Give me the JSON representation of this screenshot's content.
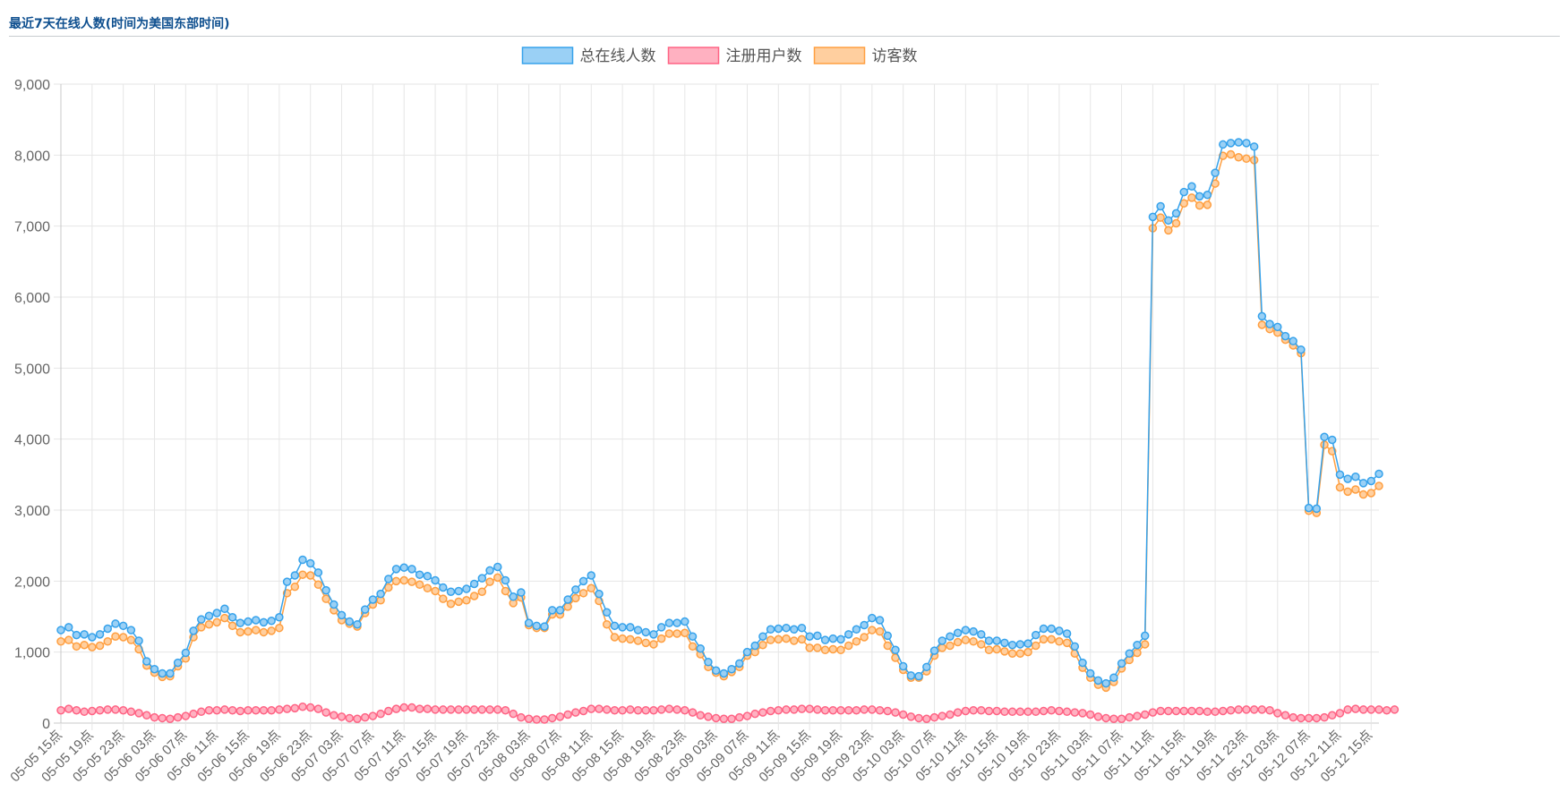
{
  "header": {
    "title": "最近7天在线人数(时间为美国东部时间)"
  },
  "chart_data": {
    "type": "line",
    "title": "",
    "xlabel": "",
    "ylabel": "",
    "ylim": [
      0,
      9000
    ],
    "y_ticks": [
      0,
      1000,
      2000,
      3000,
      4000,
      5000,
      6000,
      7000,
      8000,
      9000
    ],
    "y_tick_labels": [
      "0",
      "1,000",
      "2,000",
      "3,000",
      "4,000",
      "5,000",
      "6,000",
      "7,000",
      "8,000",
      "9,000"
    ],
    "x_tick_labels": [
      "05-05 15点",
      "05-05 19点",
      "05-05 23点",
      "05-06 03点",
      "05-06 07点",
      "05-06 11点",
      "05-06 15点",
      "05-06 19点",
      "05-06 23点",
      "05-07 03点",
      "05-07 07点",
      "05-07 11点",
      "05-07 15点",
      "05-07 19点",
      "05-07 23点",
      "05-08 03点",
      "05-08 07点",
      "05-08 11点",
      "05-08 15点",
      "05-08 19点",
      "05-08 23点",
      "05-09 03点",
      "05-09 07点",
      "05-09 11点",
      "05-09 15点",
      "05-09 19点",
      "05-09 23点",
      "05-10 03点",
      "05-10 07点",
      "05-10 11点",
      "05-10 15点",
      "05-10 19点",
      "05-10 23点",
      "05-11 03点",
      "05-11 07点",
      "05-11 11点",
      "05-11 15点",
      "05-11 19点",
      "05-11 23点",
      "05-12 03点",
      "05-12 07点",
      "05-12 11点",
      "05-12 15点"
    ],
    "points_per_tick": 4,
    "grid": true,
    "legend_position": "top-center",
    "series": [
      {
        "name": "总在线人数",
        "color": "#36a2eb",
        "fill": "#9ad0f5",
        "values": [
          1310,
          1350,
          1240,
          1250,
          1210,
          1250,
          1330,
          1400,
          1370,
          1310,
          1160,
          870,
          760,
          700,
          700,
          850,
          990,
          1300,
          1460,
          1510,
          1550,
          1610,
          1490,
          1410,
          1430,
          1450,
          1420,
          1440,
          1490,
          1990,
          2080,
          2300,
          2250,
          2120,
          1870,
          1670,
          1520,
          1430,
          1390,
          1600,
          1740,
          1820,
          2030,
          2170,
          2190,
          2170,
          2090,
          2070,
          2010,
          1910,
          1850,
          1860,
          1890,
          1960,
          2040,
          2150,
          2200,
          2010,
          1780,
          1840,
          1410,
          1370,
          1360,
          1590,
          1590,
          1740,
          1880,
          2000,
          2080,
          1820,
          1560,
          1370,
          1350,
          1350,
          1310,
          1280,
          1250,
          1350,
          1410,
          1410,
          1430,
          1220,
          1050,
          860,
          740,
          700,
          760,
          840,
          1000,
          1090,
          1220,
          1320,
          1330,
          1340,
          1320,
          1340,
          1220,
          1230,
          1170,
          1190,
          1180,
          1250,
          1320,
          1380,
          1480,
          1450,
          1230,
          1030,
          800,
          670,
          660,
          790,
          1020,
          1160,
          1220,
          1270,
          1310,
          1290,
          1250,
          1160,
          1160,
          1130,
          1100,
          1110,
          1120,
          1240,
          1330,
          1330,
          1300,
          1260,
          1080,
          850,
          700,
          600,
          560,
          640,
          840,
          980,
          1100,
          1230,
          7130,
          7280,
          7080,
          7180,
          7480,
          7560,
          7420,
          7440,
          7750,
          8150,
          8170,
          8180,
          8170,
          8120,
          5730,
          5620,
          5580,
          5450,
          5380,
          5260,
          3030,
          3020,
          4030,
          3990,
          3500,
          3440,
          3470,
          3380,
          3410,
          3510
        ]
      },
      {
        "name": "注册用户数",
        "color": "#ff6384",
        "fill": "#ffb1c1",
        "values": [
          180,
          200,
          180,
          160,
          170,
          180,
          190,
          190,
          180,
          160,
          140,
          110,
          80,
          70,
          60,
          80,
          100,
          130,
          160,
          180,
          180,
          190,
          180,
          170,
          180,
          180,
          180,
          180,
          190,
          200,
          210,
          230,
          220,
          200,
          150,
          110,
          90,
          70,
          60,
          80,
          100,
          130,
          170,
          200,
          220,
          220,
          200,
          200,
          190,
          190,
          190,
          190,
          190,
          190,
          190,
          190,
          190,
          180,
          130,
          80,
          60,
          50,
          50,
          70,
          90,
          120,
          150,
          170,
          200,
          200,
          190,
          180,
          180,
          190,
          180,
          180,
          180,
          190,
          200,
          190,
          180,
          150,
          110,
          90,
          70,
          60,
          60,
          80,
          100,
          130,
          150,
          170,
          180,
          190,
          190,
          200,
          200,
          190,
          180,
          180,
          180,
          180,
          180,
          190,
          190,
          180,
          170,
          150,
          120,
          90,
          70,
          60,
          80,
          100,
          120,
          150,
          170,
          180,
          180,
          170,
          170,
          160,
          160,
          160,
          160,
          160,
          170,
          180,
          170,
          160,
          150,
          140,
          120,
          90,
          70,
          60,
          60,
          80,
          100,
          120,
          150,
          170,
          170,
          170,
          170,
          170,
          170,
          160,
          160,
          170,
          180,
          190,
          190,
          190,
          190,
          180,
          140,
          110,
          80,
          70,
          70,
          70,
          80,
          110,
          140,
          190,
          200,
          190,
          190,
          190,
          180,
          190
        ]
      },
      {
        "name": "访客数",
        "color": "#ff9f40",
        "fill": "#ffcf9f",
        "values": [
          1150,
          1170,
          1080,
          1100,
          1070,
          1090,
          1150,
          1220,
          1210,
          1170,
          1040,
          810,
          710,
          650,
          660,
          800,
          910,
          1210,
          1350,
          1390,
          1420,
          1480,
          1370,
          1280,
          1290,
          1310,
          1280,
          1300,
          1340,
          1830,
          1920,
          2090,
          2080,
          1950,
          1750,
          1590,
          1450,
          1400,
          1360,
          1550,
          1670,
          1730,
          1910,
          2000,
          2010,
          1990,
          1950,
          1900,
          1860,
          1750,
          1680,
          1710,
          1730,
          1790,
          1850,
          1990,
          2050,
          1860,
          1690,
          1770,
          1380,
          1340,
          1340,
          1530,
          1530,
          1640,
          1760,
          1830,
          1900,
          1720,
          1390,
          1210,
          1190,
          1180,
          1160,
          1130,
          1110,
          1190,
          1260,
          1260,
          1270,
          1080,
          970,
          790,
          710,
          660,
          720,
          790,
          950,
          1000,
          1100,
          1170,
          1180,
          1190,
          1160,
          1180,
          1060,
          1060,
          1030,
          1040,
          1030,
          1090,
          1150,
          1210,
          1310,
          1290,
          1090,
          920,
          750,
          640,
          640,
          730,
          950,
          1060,
          1090,
          1140,
          1170,
          1150,
          1110,
          1030,
          1040,
          1010,
          980,
          980,
          1000,
          1090,
          1180,
          1180,
          1150,
          1130,
          980,
          780,
          640,
          540,
          500,
          580,
          770,
          890,
          990,
          1110,
          6970,
          7120,
          6940,
          7040,
          7320,
          7400,
          7290,
          7300,
          7600,
          7990,
          8010,
          7970,
          7950,
          7930,
          5610,
          5550,
          5500,
          5400,
          5320,
          5210,
          2990,
          2960,
          3920,
          3830,
          3320,
          3260,
          3290,
          3220,
          3240,
          3340
        ]
      }
    ]
  }
}
